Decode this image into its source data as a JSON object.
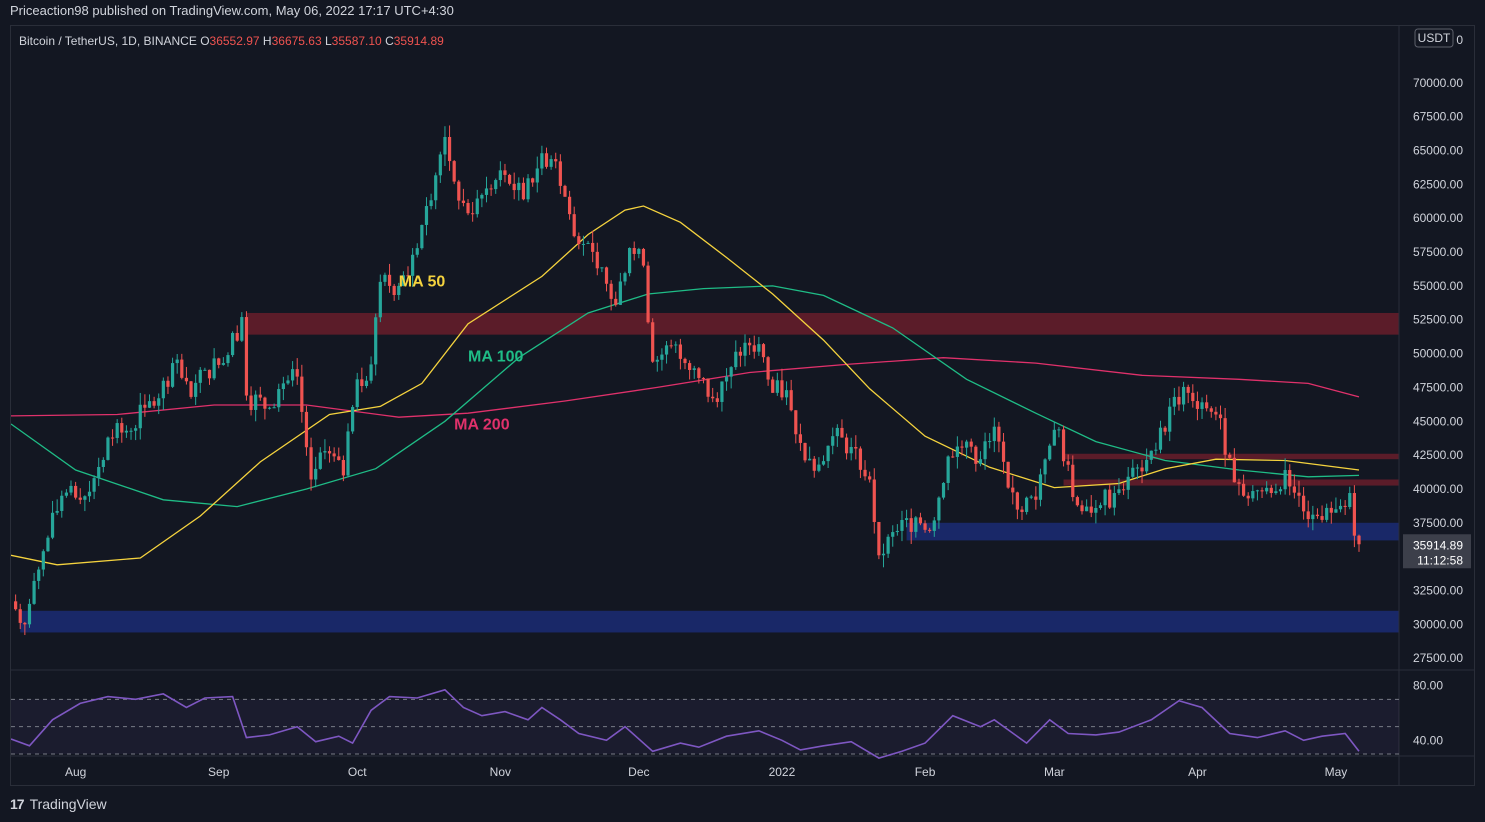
{
  "header": {
    "publisher": "Priceaction98 published on TradingView.com, May 06, 2022 17:17 UTC+4:30"
  },
  "footer": {
    "brand": "TradingView"
  },
  "colors": {
    "up": "#26a69a",
    "down": "#ef5350",
    "ma50": "#f5d33e",
    "ma100": "#1fbc86",
    "ma200": "#e0316b",
    "support": "#1c2f80",
    "resistance": "#6e1e2c",
    "rsi": "#7e57c2"
  },
  "chart_data": {
    "type": "candlestick",
    "symbol_line": {
      "name": "Bitcoin / TetherUS, 1D, BINANCE",
      "o_label": "O",
      "o_value": "36552.97",
      "h_label": "H",
      "h_value": "36675.63",
      "l_label": "L",
      "l_value": "35587.10",
      "c_label": "C",
      "c_value": "35914.89"
    },
    "currency_badge": "USDT",
    "top_tick_partial": "7 0",
    "price_ticks": [
      "70000.00",
      "67500.00",
      "65000.00",
      "62500.00",
      "60000.00",
      "57500.00",
      "55000.00",
      "52500.00",
      "50000.00",
      "47500.00",
      "45000.00",
      "42500.00",
      "40000.00",
      "37500.00",
      "32500.00",
      "30000.00",
      "27500.00"
    ],
    "price_tick_values": [
      70000,
      67500,
      65000,
      62500,
      60000,
      57500,
      55000,
      52500,
      50000,
      47500,
      45000,
      42500,
      40000,
      37500,
      32500,
      30000,
      27500
    ],
    "current_price": {
      "value": "35914.89",
      "countdown": "11:12:58",
      "price": 35914.89
    },
    "x_labels": [
      "Aug",
      "Sep",
      "Oct",
      "Nov",
      "Dec",
      "2022",
      "Feb",
      "Mar",
      "Apr",
      "May"
    ],
    "x_label_dates": [
      "2021-08-01",
      "2021-09-01",
      "2021-10-01",
      "2021-11-01",
      "2021-12-01",
      "2022-01-01",
      "2022-02-01",
      "2022-03-01",
      "2022-04-01",
      "2022-05-01"
    ],
    "date_range": [
      "2021-07-18",
      "2022-05-06"
    ],
    "y_range": [
      26700,
      74200
    ],
    "annotations": [
      {
        "text": "MA 50",
        "series": "ma50",
        "date": "2021-10-10",
        "price": 54950
      },
      {
        "text": "MA 100",
        "series": "ma100",
        "date": "2021-10-25",
        "price": 49400
      },
      {
        "text": "MA 200",
        "series": "ma200",
        "date": "2021-10-22",
        "price": 44400
      }
    ],
    "zones": [
      {
        "kind": "resistance",
        "from": "2021-09-07",
        "to": "2022-05-15",
        "low": 51400,
        "high": 53000
      },
      {
        "kind": "support",
        "from": "2022-01-28",
        "to": "2022-05-15",
        "low": 36200,
        "high": 37500
      },
      {
        "kind": "support",
        "from": "2021-07-20",
        "to": "2022-05-15",
        "low": 29400,
        "high": 31000
      },
      {
        "kind": "resistance",
        "from": "2022-03-03",
        "to": "2022-05-15",
        "low": 42200,
        "high": 42600
      },
      {
        "kind": "resistance",
        "from": "2022-03-03",
        "to": "2022-05-15",
        "low": 40250,
        "high": 40700
      }
    ],
    "price_series_close": [
      [
        "2021-07-18",
        31700
      ],
      [
        "2021-07-21",
        30000
      ],
      [
        "2021-07-25",
        35400
      ],
      [
        "2021-07-29",
        39500
      ],
      [
        "2021-08-02",
        39200
      ],
      [
        "2021-08-05",
        40800
      ],
      [
        "2021-08-08",
        43800
      ],
      [
        "2021-08-12",
        44300
      ],
      [
        "2021-08-16",
        46000
      ],
      [
        "2021-08-19",
        46700
      ],
      [
        "2021-08-22",
        49300
      ],
      [
        "2021-08-26",
        46800
      ],
      [
        "2021-08-29",
        48800
      ],
      [
        "2021-09-02",
        49300
      ],
      [
        "2021-09-06",
        52700
      ],
      [
        "2021-09-07",
        46900
      ],
      [
        "2021-09-12",
        46000
      ],
      [
        "2021-09-15",
        47800
      ],
      [
        "2021-09-18",
        48300
      ],
      [
        "2021-09-21",
        40700
      ],
      [
        "2021-09-24",
        42800
      ],
      [
        "2021-09-28",
        41000
      ],
      [
        "2021-10-01",
        48100
      ],
      [
        "2021-10-04",
        49200
      ],
      [
        "2021-10-06",
        55300
      ],
      [
        "2021-10-10",
        55000
      ],
      [
        "2021-10-13",
        57300
      ],
      [
        "2021-10-16",
        60900
      ],
      [
        "2021-10-20",
        66000
      ],
      [
        "2021-10-23",
        61300
      ],
      [
        "2021-10-26",
        60300
      ],
      [
        "2021-10-29",
        62200
      ],
      [
        "2021-11-02",
        63200
      ],
      [
        "2021-11-06",
        61400
      ],
      [
        "2021-11-10",
        64800
      ],
      [
        "2021-11-13",
        64200
      ],
      [
        "2021-11-16",
        60300
      ],
      [
        "2021-11-19",
        58100
      ],
      [
        "2021-11-22",
        56300
      ],
      [
        "2021-11-26",
        53600
      ],
      [
        "2021-11-29",
        57800
      ],
      [
        "2021-12-02",
        56500
      ],
      [
        "2021-12-04",
        49400
      ],
      [
        "2021-12-08",
        50600
      ],
      [
        "2021-12-11",
        49300
      ],
      [
        "2021-12-14",
        48200
      ],
      [
        "2021-12-17",
        46700
      ],
      [
        "2021-12-21",
        49000
      ],
      [
        "2021-12-24",
        50800
      ],
      [
        "2021-12-27",
        50700
      ],
      [
        "2021-12-30",
        47100
      ],
      [
        "2022-01-02",
        47300
      ],
      [
        "2022-01-05",
        43400
      ],
      [
        "2022-01-09",
        41800
      ],
      [
        "2022-01-12",
        43900
      ],
      [
        "2022-01-16",
        43100
      ],
      [
        "2022-01-20",
        40700
      ],
      [
        "2022-01-22",
        35100
      ],
      [
        "2022-01-26",
        36900
      ],
      [
        "2022-01-30",
        37900
      ],
      [
        "2022-02-02",
        36900
      ],
      [
        "2022-02-06",
        42400
      ],
      [
        "2022-02-10",
        43500
      ],
      [
        "2022-02-13",
        42200
      ],
      [
        "2022-02-16",
        44600
      ],
      [
        "2022-02-19",
        40100
      ],
      [
        "2022-02-22",
        38300
      ],
      [
        "2022-02-25",
        39200
      ],
      [
        "2022-02-28",
        43200
      ],
      [
        "2022-03-02",
        44400
      ],
      [
        "2022-03-05",
        39400
      ],
      [
        "2022-03-08",
        38700
      ],
      [
        "2022-03-11",
        38800
      ],
      [
        "2022-03-14",
        39700
      ],
      [
        "2022-03-17",
        40900
      ],
      [
        "2022-03-20",
        41300
      ],
      [
        "2022-03-23",
        42900
      ],
      [
        "2022-03-27",
        46800
      ],
      [
        "2022-03-30",
        47100
      ],
      [
        "2022-04-02",
        46400
      ],
      [
        "2022-04-05",
        45500
      ],
      [
        "2022-04-08",
        42300
      ],
      [
        "2022-04-11",
        39500
      ],
      [
        "2022-04-14",
        39900
      ],
      [
        "2022-04-17",
        39700
      ],
      [
        "2022-04-20",
        41400
      ],
      [
        "2022-04-23",
        39500
      ],
      [
        "2022-04-26",
        38100
      ],
      [
        "2022-04-29",
        38600
      ],
      [
        "2022-05-01",
        38500
      ],
      [
        "2022-05-04",
        39700
      ],
      [
        "2022-05-05",
        36550
      ],
      [
        "2022-05-06",
        35915
      ]
    ],
    "ma50_series": [
      [
        "2021-07-18",
        35100
      ],
      [
        "2021-07-28",
        34400
      ],
      [
        "2021-08-15",
        34900
      ],
      [
        "2021-08-28",
        38000
      ],
      [
        "2021-09-10",
        42000
      ],
      [
        "2021-09-25",
        45500
      ],
      [
        "2021-10-06",
        46100
      ],
      [
        "2021-10-15",
        47800
      ],
      [
        "2021-10-25",
        52200
      ],
      [
        "2021-11-10",
        55700
      ],
      [
        "2021-11-20",
        58800
      ],
      [
        "2021-11-28",
        60600
      ],
      [
        "2021-12-02",
        60900
      ],
      [
        "2021-12-10",
        59700
      ],
      [
        "2021-12-20",
        57100
      ],
      [
        "2021-12-30",
        54400
      ],
      [
        "2022-01-10",
        51000
      ],
      [
        "2022-01-20",
        47400
      ],
      [
        "2022-02-01",
        43900
      ],
      [
        "2022-02-15",
        41600
      ],
      [
        "2022-03-01",
        40100
      ],
      [
        "2022-03-15",
        40400
      ],
      [
        "2022-03-25",
        41500
      ],
      [
        "2022-04-05",
        42200
      ],
      [
        "2022-04-20",
        42100
      ],
      [
        "2022-05-06",
        41400
      ]
    ],
    "ma100_series": [
      [
        "2021-07-18",
        44800
      ],
      [
        "2021-08-01",
        41400
      ],
      [
        "2021-08-20",
        39200
      ],
      [
        "2021-09-05",
        38700
      ],
      [
        "2021-09-20",
        40000
      ],
      [
        "2021-10-05",
        41500
      ],
      [
        "2021-10-20",
        45000
      ],
      [
        "2021-11-05",
        49700
      ],
      [
        "2021-11-20",
        53000
      ],
      [
        "2021-12-03",
        54400
      ],
      [
        "2021-12-15",
        54800
      ],
      [
        "2021-12-30",
        55000
      ],
      [
        "2022-01-10",
        54300
      ],
      [
        "2022-01-25",
        51900
      ],
      [
        "2022-02-10",
        48100
      ],
      [
        "2022-02-25",
        45600
      ],
      [
        "2022-03-10",
        43500
      ],
      [
        "2022-03-25",
        42100
      ],
      [
        "2022-04-10",
        41400
      ],
      [
        "2022-04-25",
        40900
      ],
      [
        "2022-05-06",
        41000
      ]
    ],
    "ma200_series": [
      [
        "2021-07-18",
        45400
      ],
      [
        "2021-08-10",
        45500
      ],
      [
        "2021-08-31",
        46200
      ],
      [
        "2021-09-20",
        46200
      ],
      [
        "2021-10-10",
        45300
      ],
      [
        "2021-10-25",
        45600
      ],
      [
        "2021-11-15",
        46500
      ],
      [
        "2021-12-05",
        47500
      ],
      [
        "2021-12-25",
        48600
      ],
      [
        "2022-01-15",
        49200
      ],
      [
        "2022-02-05",
        49700
      ],
      [
        "2022-02-25",
        49300
      ],
      [
        "2022-03-20",
        48400
      ],
      [
        "2022-04-10",
        48100
      ],
      [
        "2022-04-25",
        47800
      ],
      [
        "2022-05-06",
        46800
      ]
    ],
    "rsi": {
      "ticks": [
        "80.00",
        "40.00"
      ],
      "tick_values": [
        80,
        40
      ],
      "range": [
        30,
        90
      ],
      "band": [
        30,
        70
      ],
      "series": [
        [
          "2021-07-18",
          41
        ],
        [
          "2021-07-22",
          36
        ],
        [
          "2021-07-27",
          55
        ],
        [
          "2021-08-02",
          67
        ],
        [
          "2021-08-08",
          72
        ],
        [
          "2021-08-14",
          70
        ],
        [
          "2021-08-20",
          74
        ],
        [
          "2021-08-25",
          64
        ],
        [
          "2021-08-29",
          71
        ],
        [
          "2021-09-04",
          72
        ],
        [
          "2021-09-07",
          42
        ],
        [
          "2021-09-12",
          44
        ],
        [
          "2021-09-18",
          50
        ],
        [
          "2021-09-22",
          39
        ],
        [
          "2021-09-27",
          43
        ],
        [
          "2021-09-30",
          38
        ],
        [
          "2021-10-04",
          62
        ],
        [
          "2021-10-08",
          72
        ],
        [
          "2021-10-14",
          71
        ],
        [
          "2021-10-20",
          77
        ],
        [
          "2021-10-24",
          64
        ],
        [
          "2021-10-28",
          58
        ],
        [
          "2021-11-02",
          61
        ],
        [
          "2021-11-07",
          55
        ],
        [
          "2021-11-10",
          64
        ],
        [
          "2021-11-14",
          55
        ],
        [
          "2021-11-18",
          45
        ],
        [
          "2021-11-24",
          40
        ],
        [
          "2021-11-28",
          50
        ],
        [
          "2021-12-04",
          32
        ],
        [
          "2021-12-10",
          38
        ],
        [
          "2021-12-14",
          35
        ],
        [
          "2021-12-20",
          43
        ],
        [
          "2021-12-27",
          47
        ],
        [
          "2022-01-01",
          40
        ],
        [
          "2022-01-05",
          33
        ],
        [
          "2022-01-10",
          36
        ],
        [
          "2022-01-16",
          39
        ],
        [
          "2022-01-22",
          27
        ],
        [
          "2022-01-27",
          32
        ],
        [
          "2022-02-01",
          38
        ],
        [
          "2022-02-07",
          58
        ],
        [
          "2022-02-13",
          50
        ],
        [
          "2022-02-16",
          55
        ],
        [
          "2022-02-23",
          38
        ],
        [
          "2022-02-28",
          55
        ],
        [
          "2022-03-04",
          45
        ],
        [
          "2022-03-10",
          44
        ],
        [
          "2022-03-15",
          46
        ],
        [
          "2022-03-22",
          55
        ],
        [
          "2022-03-28",
          69
        ],
        [
          "2022-04-02",
          64
        ],
        [
          "2022-04-08",
          45
        ],
        [
          "2022-04-14",
          42
        ],
        [
          "2022-04-20",
          47
        ],
        [
          "2022-04-24",
          40
        ],
        [
          "2022-04-28",
          43
        ],
        [
          "2022-05-03",
          45
        ],
        [
          "2022-05-06",
          32
        ]
      ]
    }
  }
}
